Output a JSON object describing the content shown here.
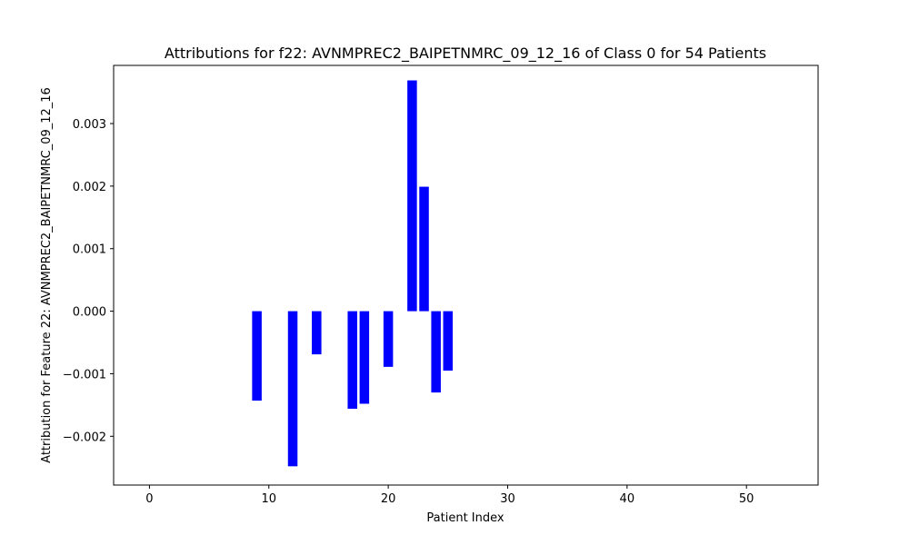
{
  "chart_data": {
    "type": "bar",
    "title": "Attributions for f22: AVNMPREC2_BAIPETNMRC_09_12_16 of Class 0 for 54 Patients",
    "xlabel": "Patient Index",
    "ylabel": "Attribution for Feature 22: AVNMPREC2_BAIPETNMRC_09_12_16",
    "xlim": [
      -3,
      56
    ],
    "ylim": [
      -0.00278,
      0.00393
    ],
    "xticks": [
      0,
      10,
      20,
      30,
      40,
      50
    ],
    "xtick_labels": [
      "0",
      "10",
      "20",
      "30",
      "40",
      "50"
    ],
    "yticks": [
      -0.002,
      -0.001,
      0.0,
      0.001,
      0.002,
      0.003
    ],
    "ytick_labels": [
      "−0.002",
      "−0.001",
      "0.000",
      "0.001",
      "0.002",
      "0.003"
    ],
    "bar_width": 0.8,
    "bar_color": "#0000ff",
    "grid": false,
    "legend": "none",
    "bars": [
      {
        "x": 9,
        "value": -0.00143
      },
      {
        "x": 12,
        "value": -0.00248
      },
      {
        "x": 14,
        "value": -0.00069
      },
      {
        "x": 17,
        "value": -0.00156
      },
      {
        "x": 18,
        "value": -0.00148
      },
      {
        "x": 20,
        "value": -0.00089
      },
      {
        "x": 22,
        "value": 0.00369
      },
      {
        "x": 23,
        "value": 0.00199
      },
      {
        "x": 24,
        "value": -0.0013
      },
      {
        "x": 25,
        "value": -0.00095
      }
    ]
  }
}
